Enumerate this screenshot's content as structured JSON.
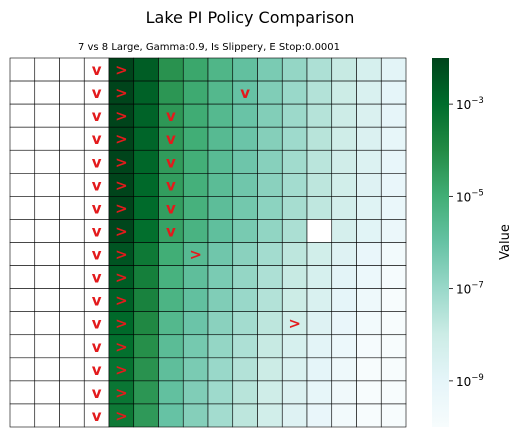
{
  "chart_data": {
    "type": "heatmap",
    "title": "Lake PI Policy Comparison",
    "subtitle": "7 vs 8 Large, Gamma:0.9, Is Slippery, E Stop:0.0001",
    "colorbar": {
      "label": "Value",
      "scale": "log",
      "range": [
        1e-10,
        0.01
      ],
      "ticks": [
        {
          "value": 0.001,
          "base": "10",
          "exp": "−3"
        },
        {
          "value": 1e-05,
          "base": "10",
          "exp": "−5"
        },
        {
          "value": 1e-07,
          "base": "10",
          "exp": "−7"
        },
        {
          "value": 1e-09,
          "base": "10",
          "exp": "−9"
        }
      ],
      "colormap": "BuGn"
    },
    "grid": {
      "rows": 16,
      "cols": 16
    },
    "value_log10_by_column": [
      null,
      null,
      null,
      null,
      -1.6,
      -2.6,
      -4.2,
      -4.8,
      -5.4,
      -5.9,
      -6.4,
      -6.9,
      -7.4,
      -7.9,
      -8.4,
      -8.9
    ],
    "row_offset_log10": [
      0.0,
      0.1,
      0.15,
      0.2,
      0.25,
      0.3,
      0.35,
      0.45,
      0.8,
      1.0,
      1.1,
      1.3,
      1.5,
      1.6,
      1.7,
      1.8
    ],
    "masked_cells": [
      {
        "row": 7,
        "col": 12
      }
    ],
    "policy_arrows": [
      {
        "row": 0,
        "col": 3,
        "symbol": "v"
      },
      {
        "row": 0,
        "col": 4,
        "symbol": ">"
      },
      {
        "row": 1,
        "col": 3,
        "symbol": "v"
      },
      {
        "row": 1,
        "col": 4,
        "symbol": ">"
      },
      {
        "row": 1,
        "col": 9,
        "symbol": "v"
      },
      {
        "row": 2,
        "col": 3,
        "symbol": "v"
      },
      {
        "row": 2,
        "col": 4,
        "symbol": ">"
      },
      {
        "row": 2,
        "col": 6,
        "symbol": "v"
      },
      {
        "row": 3,
        "col": 3,
        "symbol": "v"
      },
      {
        "row": 3,
        "col": 4,
        "symbol": ">"
      },
      {
        "row": 3,
        "col": 6,
        "symbol": "v"
      },
      {
        "row": 4,
        "col": 3,
        "symbol": "v"
      },
      {
        "row": 4,
        "col": 4,
        "symbol": ">"
      },
      {
        "row": 4,
        "col": 6,
        "symbol": "v"
      },
      {
        "row": 5,
        "col": 3,
        "symbol": "v"
      },
      {
        "row": 5,
        "col": 4,
        "symbol": ">"
      },
      {
        "row": 5,
        "col": 6,
        "symbol": "v"
      },
      {
        "row": 6,
        "col": 3,
        "symbol": "v"
      },
      {
        "row": 6,
        "col": 4,
        "symbol": ">"
      },
      {
        "row": 6,
        "col": 6,
        "symbol": "v"
      },
      {
        "row": 7,
        "col": 3,
        "symbol": "v"
      },
      {
        "row": 7,
        "col": 4,
        "symbol": ">"
      },
      {
        "row": 7,
        "col": 6,
        "symbol": "v"
      },
      {
        "row": 8,
        "col": 3,
        "symbol": "v"
      },
      {
        "row": 8,
        "col": 4,
        "symbol": ">"
      },
      {
        "row": 8,
        "col": 7,
        "symbol": ">"
      },
      {
        "row": 9,
        "col": 3,
        "symbol": "v"
      },
      {
        "row": 9,
        "col": 4,
        "symbol": ">"
      },
      {
        "row": 10,
        "col": 3,
        "symbol": "v"
      },
      {
        "row": 10,
        "col": 4,
        "symbol": ">"
      },
      {
        "row": 11,
        "col": 3,
        "symbol": "v"
      },
      {
        "row": 11,
        "col": 4,
        "symbol": ">"
      },
      {
        "row": 11,
        "col": 11,
        "symbol": ">"
      },
      {
        "row": 12,
        "col": 3,
        "symbol": "v"
      },
      {
        "row": 12,
        "col": 4,
        "symbol": ">"
      },
      {
        "row": 13,
        "col": 3,
        "symbol": "v"
      },
      {
        "row": 13,
        "col": 4,
        "symbol": ">"
      },
      {
        "row": 14,
        "col": 3,
        "symbol": "v"
      },
      {
        "row": 14,
        "col": 4,
        "symbol": ">"
      },
      {
        "row": 15,
        "col": 3,
        "symbol": "v"
      },
      {
        "row": 15,
        "col": 4,
        "symbol": ">"
      }
    ],
    "arrow_color": "#e31a1c",
    "grid_line_color": "#000000"
  }
}
